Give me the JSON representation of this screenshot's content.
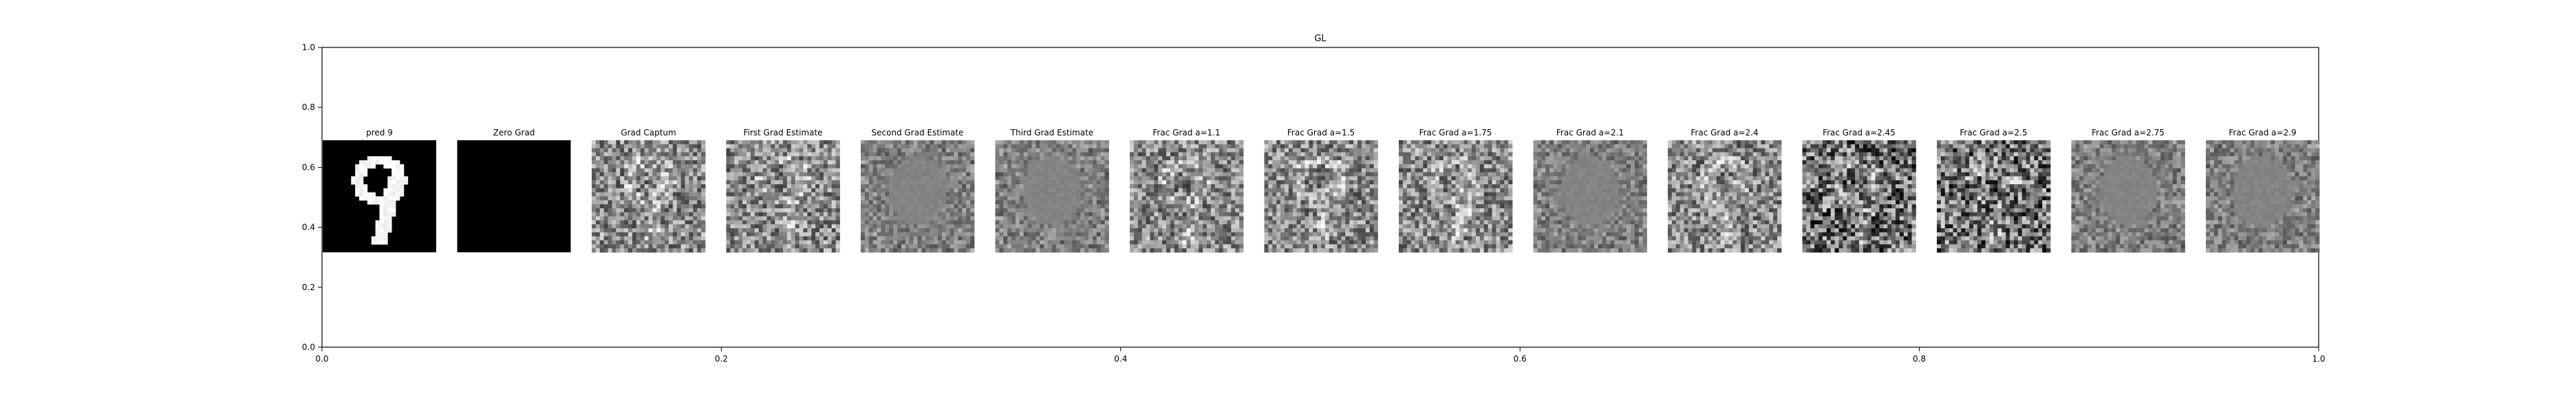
{
  "chart_data": {
    "type": "image-grid",
    "title": "GL",
    "xlabel": "",
    "ylabel": "",
    "xlim": [
      0.0,
      1.0
    ],
    "ylim": [
      0.0,
      1.0
    ],
    "x_ticks": [
      "0.0",
      "0.2",
      "0.4",
      "0.6",
      "0.8",
      "1.0"
    ],
    "y_ticks": [
      "0.0",
      "0.2",
      "0.4",
      "0.6",
      "0.8",
      "1.0"
    ],
    "grid": false,
    "panels": [
      {
        "title": "pred 9",
        "kind": "digit",
        "seed": 1
      },
      {
        "title": "Zero Grad",
        "kind": "black",
        "seed": 2
      },
      {
        "title": "Grad Captum",
        "kind": "texture",
        "seed": 3
      },
      {
        "title": "First Grad Estimate",
        "kind": "texture",
        "seed": 4
      },
      {
        "title": "Second Grad Estimate",
        "kind": "smooth",
        "seed": 5
      },
      {
        "title": "Third Grad Estimate",
        "kind": "smooth",
        "seed": 6
      },
      {
        "title": "Frac Grad a=1.1",
        "kind": "texture",
        "seed": 7
      },
      {
        "title": "Frac Grad a=1.5",
        "kind": "texture",
        "seed": 8
      },
      {
        "title": "Frac Grad a=1.75",
        "kind": "texture",
        "seed": 9
      },
      {
        "title": "Frac Grad a=2.1",
        "kind": "smooth",
        "seed": 10
      },
      {
        "title": "Frac Grad a=2.4",
        "kind": "texture",
        "seed": 11
      },
      {
        "title": "Frac Grad a=2.45",
        "kind": "noisy",
        "seed": 12
      },
      {
        "title": "Frac Grad a=2.5",
        "kind": "noisy",
        "seed": 13
      },
      {
        "title": "Frac Grad a=2.75",
        "kind": "smooth",
        "seed": 14
      },
      {
        "title": "Frac Grad a=2.9",
        "kind": "smooth",
        "seed": 15
      }
    ]
  }
}
